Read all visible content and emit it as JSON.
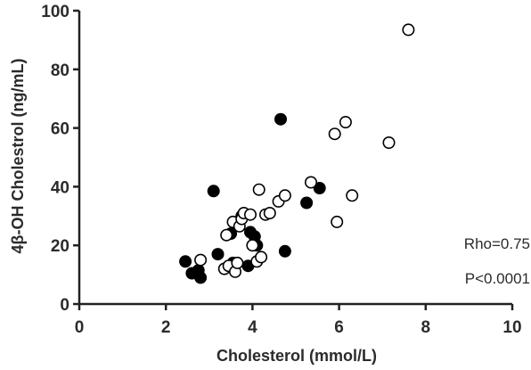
{
  "chart_data": {
    "type": "scatter",
    "title": "",
    "xlabel": "Cholesterol (mmol/L)",
    "ylabel": "4β-OH Cholestrol (ng/mL)",
    "xlim": [
      0,
      10
    ],
    "ylim": [
      0,
      100
    ],
    "x_ticks": [
      "0",
      "2",
      "4",
      "6",
      "8",
      "10"
    ],
    "y_ticks": [
      "0",
      "20",
      "40",
      "60",
      "80",
      "100"
    ],
    "grid": false,
    "annotations": [
      "Rho=0.75",
      "P<0.0001"
    ],
    "series": [
      {
        "marker": "filled-circle",
        "color": "#000000",
        "points": [
          {
            "x": 2.45,
            "y": 14.5
          },
          {
            "x": 2.6,
            "y": 10.5
          },
          {
            "x": 2.75,
            "y": 11.5
          },
          {
            "x": 2.8,
            "y": 9
          },
          {
            "x": 3.1,
            "y": 38.5
          },
          {
            "x": 3.2,
            "y": 17
          },
          {
            "x": 3.5,
            "y": 24
          },
          {
            "x": 3.55,
            "y": 14
          },
          {
            "x": 3.75,
            "y": 30
          },
          {
            "x": 3.9,
            "y": 13
          },
          {
            "x": 3.95,
            "y": 24.5
          },
          {
            "x": 4.05,
            "y": 23
          },
          {
            "x": 4.1,
            "y": 20
          },
          {
            "x": 4.65,
            "y": 63
          },
          {
            "x": 4.75,
            "y": 18
          },
          {
            "x": 5.25,
            "y": 34.5
          },
          {
            "x": 5.55,
            "y": 39.5
          }
        ]
      },
      {
        "marker": "open-circle",
        "color": "#000000",
        "points": [
          {
            "x": 2.8,
            "y": 15
          },
          {
            "x": 3.35,
            "y": 12
          },
          {
            "x": 3.4,
            "y": 23.5
          },
          {
            "x": 3.45,
            "y": 13
          },
          {
            "x": 3.55,
            "y": 28
          },
          {
            "x": 3.6,
            "y": 11
          },
          {
            "x": 3.65,
            "y": 14
          },
          {
            "x": 3.7,
            "y": 26.5
          },
          {
            "x": 3.75,
            "y": 29
          },
          {
            "x": 3.8,
            "y": 31
          },
          {
            "x": 3.95,
            "y": 30.5
          },
          {
            "x": 4.0,
            "y": 20
          },
          {
            "x": 4.1,
            "y": 14.5
          },
          {
            "x": 4.15,
            "y": 39
          },
          {
            "x": 4.2,
            "y": 16
          },
          {
            "x": 4.3,
            "y": 30.5
          },
          {
            "x": 4.4,
            "y": 31
          },
          {
            "x": 4.6,
            "y": 35
          },
          {
            "x": 4.75,
            "y": 37
          },
          {
            "x": 5.35,
            "y": 41.5
          },
          {
            "x": 5.9,
            "y": 58
          },
          {
            "x": 5.95,
            "y": 28
          },
          {
            "x": 6.15,
            "y": 62
          },
          {
            "x": 6.3,
            "y": 37
          },
          {
            "x": 7.15,
            "y": 55
          },
          {
            "x": 7.6,
            "y": 93.5
          }
        ]
      }
    ]
  }
}
